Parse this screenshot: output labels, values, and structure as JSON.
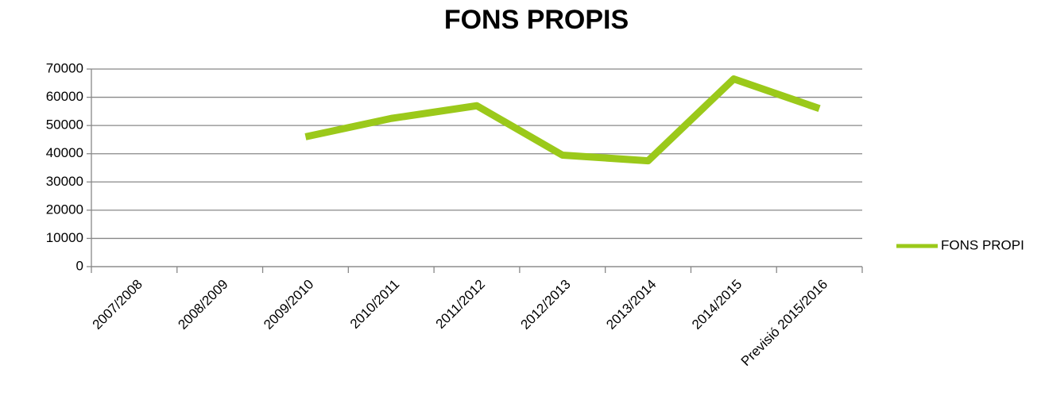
{
  "chart_data": {
    "type": "line",
    "title": "FONS PROPIS",
    "categories": [
      "2007/2008",
      "2008/2009",
      "2009/2010",
      "2010/2011",
      "2011/2012",
      "2012/2013",
      "2013/2014",
      "2014/2015",
      "Previsió 2015/2016"
    ],
    "series": [
      {
        "name": "FONS PROPI",
        "color": "#9bc91a",
        "values": [
          null,
          null,
          46000,
          52500,
          57000,
          39500,
          37500,
          66500,
          56000
        ]
      }
    ],
    "ylim": [
      0,
      70000
    ],
    "yticks": [
      0,
      10000,
      20000,
      30000,
      40000,
      50000,
      60000,
      70000
    ],
    "grid": true,
    "legend": "right"
  }
}
